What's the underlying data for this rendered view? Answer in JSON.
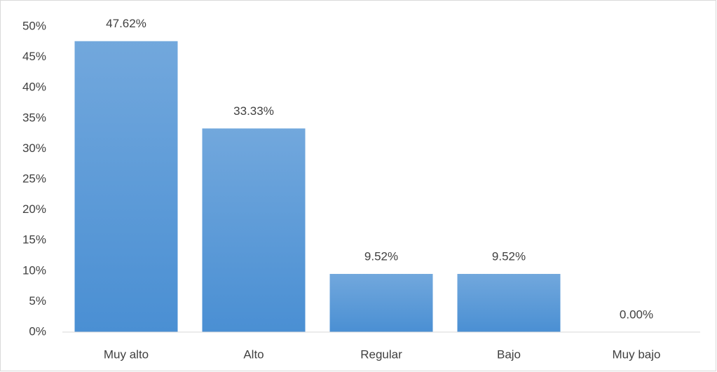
{
  "chart_data": {
    "type": "bar",
    "categories": [
      "Muy alto",
      "Alto",
      "Regular",
      "Bajo",
      "Muy bajo"
    ],
    "values": [
      47.62,
      33.33,
      9.52,
      9.52,
      0.0
    ],
    "value_labels": [
      "47.62%",
      "33.33%",
      "9.52%",
      "9.52%",
      "0.00%"
    ],
    "color": "#4a8fd3",
    "ylim": [
      0,
      50
    ],
    "yticks": [
      {
        "value": 0,
        "label": "0%"
      },
      {
        "value": 5,
        "label": "5%"
      },
      {
        "value": 10,
        "label": "10%"
      },
      {
        "value": 15,
        "label": "15%"
      },
      {
        "value": 20,
        "label": "20%"
      },
      {
        "value": 25,
        "label": "25%"
      },
      {
        "value": 30,
        "label": "30%"
      },
      {
        "value": 35,
        "label": "35%"
      },
      {
        "value": 40,
        "label": "40%"
      },
      {
        "value": 45,
        "label": "45%"
      },
      {
        "value": 50,
        "label": "50%"
      }
    ],
    "grid": false
  }
}
